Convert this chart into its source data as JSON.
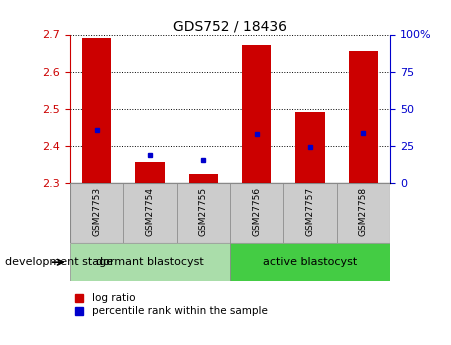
{
  "title": "GDS752 / 18436",
  "samples": [
    "GSM27753",
    "GSM27754",
    "GSM27755",
    "GSM27756",
    "GSM27757",
    "GSM27758"
  ],
  "log_ratio_top": [
    2.69,
    2.355,
    2.325,
    2.672,
    2.492,
    2.655
  ],
  "log_ratio_base": 2.3,
  "percentile_values": [
    2.442,
    2.376,
    2.362,
    2.432,
    2.398,
    2.434
  ],
  "ylim": [
    2.3,
    2.7
  ],
  "y_ticks": [
    2.3,
    2.4,
    2.5,
    2.6,
    2.7
  ],
  "y2_tick_labels": [
    "0",
    "25",
    "50",
    "75",
    "100%"
  ],
  "y2_tick_positions": [
    2.3,
    2.4,
    2.5,
    2.6,
    2.7
  ],
  "bar_color": "#cc0000",
  "percentile_color": "#0000cc",
  "bar_width": 0.55,
  "groups": [
    {
      "label": "dormant blastocyst",
      "indices": [
        0,
        1,
        2
      ],
      "color": "#aaddaa"
    },
    {
      "label": "active blastocyst",
      "indices": [
        3,
        4,
        5
      ],
      "color": "#44cc44"
    }
  ],
  "group_label_prefix": "development stage",
  "left_tick_color": "#cc0000",
  "right_tick_color": "#0000cc",
  "title_fontsize": 10,
  "tick_fontsize": 8,
  "sample_fontsize": 6.5,
  "label_fontsize": 8,
  "legend_fontsize": 7.5,
  "bg_plot": "#ffffff",
  "sample_bg": "#cccccc",
  "grid_color": "#000000",
  "grid_linestyle": "dotted",
  "grid_linewidth": 0.7
}
